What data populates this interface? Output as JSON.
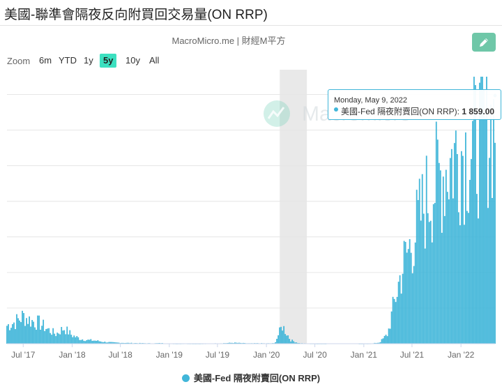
{
  "header": {
    "title": "美國-聯準會隔夜反向附買回交易量(ON RRP)"
  },
  "source": "MacroMicro.me | 財經M平方",
  "watermark": "MacroMicro",
  "toolbar": {
    "edit_icon": "pencil-icon",
    "zoom_label": "Zoom",
    "zoom_options": [
      "6m",
      "YTD",
      "1y",
      "5y",
      "10y",
      "All"
    ],
    "zoom_selected": "5y"
  },
  "tooltip": {
    "date": "Monday, May 9, 2022",
    "series_label": "美國-Fed 隔夜附賣回(ON RRP):",
    "value": "1 859.00"
  },
  "colors": {
    "series": "#41b6d9",
    "accent": "#6fc7a8",
    "zoom_active": "#3ce0c0",
    "highlight_band": "#e9e9e9"
  },
  "chart_data": {
    "type": "bar",
    "title": "美國-聯準會隔夜反向附買回交易量(ON RRP)",
    "x_range": [
      "2017-05",
      "2022-05-09"
    ],
    "x_ticks": [
      "Jul '17",
      "Jan '18",
      "Jul '18",
      "Jan '19",
      "Jul '19",
      "Jan '20",
      "Jul '20",
      "Jan '21",
      "Jul '21",
      "Jan '22"
    ],
    "ylim": [
      0,
      2000
    ],
    "grid": true,
    "highlight_band": [
      "2020-02-20",
      "2020-06-01"
    ],
    "series": [
      {
        "name": "美國-Fed 隔夜附賣回(ON RRP)",
        "points": [
          [
            "2017-05",
            150
          ],
          [
            "2017-06",
            180
          ],
          [
            "2017-07",
            230
          ],
          [
            "2017-08",
            190
          ],
          [
            "2017-09",
            170
          ],
          [
            "2017-10",
            120
          ],
          [
            "2017-11",
            80
          ],
          [
            "2017-12",
            130
          ],
          [
            "2018-01",
            70
          ],
          [
            "2018-02",
            40
          ],
          [
            "2018-03",
            30
          ],
          [
            "2018-04",
            25
          ],
          [
            "2018-05",
            15
          ],
          [
            "2018-06",
            10
          ],
          [
            "2018-07",
            8
          ],
          [
            "2018-08",
            6
          ],
          [
            "2018-09",
            5
          ],
          [
            "2018-10",
            4
          ],
          [
            "2018-11",
            3
          ],
          [
            "2018-12",
            5
          ],
          [
            "2019-01",
            2
          ],
          [
            "2019-02",
            1
          ],
          [
            "2019-03",
            2
          ],
          [
            "2019-04",
            1
          ],
          [
            "2019-05",
            1
          ],
          [
            "2019-06",
            2
          ],
          [
            "2019-07",
            3
          ],
          [
            "2019-08",
            5
          ],
          [
            "2019-09",
            8
          ],
          [
            "2019-10",
            5
          ],
          [
            "2019-11",
            3
          ],
          [
            "2019-12",
            4
          ],
          [
            "2020-01",
            3
          ],
          [
            "2020-02",
            4
          ],
          [
            "2020-03",
            150
          ],
          [
            "2020-04",
            30
          ],
          [
            "2020-05",
            5
          ],
          [
            "2020-06",
            2
          ],
          [
            "2020-07",
            1
          ],
          [
            "2020-08",
            1
          ],
          [
            "2020-09",
            0
          ],
          [
            "2020-10",
            0
          ],
          [
            "2020-11",
            0
          ],
          [
            "2020-12",
            0
          ],
          [
            "2021-01",
            1
          ],
          [
            "2021-02",
            2
          ],
          [
            "2021-03",
            10
          ],
          [
            "2021-04",
            80
          ],
          [
            "2021-05",
            400
          ],
          [
            "2021-06",
            680
          ],
          [
            "2021-07",
            850
          ],
          [
            "2021-08",
            1050
          ],
          [
            "2021-09",
            1250
          ],
          [
            "2021-10",
            1350
          ],
          [
            "2021-11",
            1450
          ],
          [
            "2021-12",
            1550
          ],
          [
            "2022-01",
            1620
          ],
          [
            "2022-02",
            1600
          ],
          [
            "2022-03",
            1680
          ],
          [
            "2022-04",
            1780
          ],
          [
            "2022-05-09",
            1859
          ]
        ]
      }
    ],
    "legend": "bottom-center"
  }
}
